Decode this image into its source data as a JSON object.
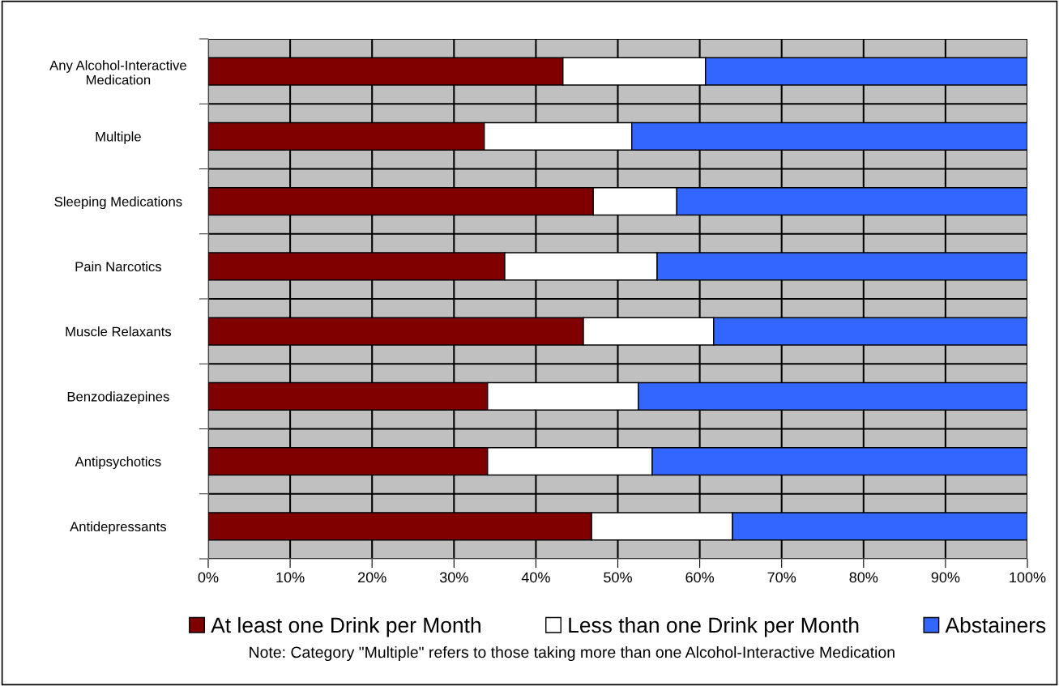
{
  "chart_data": {
    "type": "bar",
    "orientation": "horizontal",
    "stacked": true,
    "categories": [
      "Any Alcohol-Interactive\nMedication",
      "Multiple",
      "Sleeping Medications",
      "Pain Narcotics",
      "Muscle Relaxants",
      "Benzodiazepines",
      "Antipsychotics",
      "Antidepressants"
    ],
    "series": [
      {
        "name": "At least one Drink per Month",
        "color": "#800000",
        "values": [
          43.3,
          33.7,
          47.0,
          36.2,
          45.8,
          34.1,
          34.1,
          46.8
        ]
      },
      {
        "name": "Less than one Drink per Month",
        "color": "#ffffff",
        "values": [
          17.4,
          18.0,
          10.2,
          18.6,
          15.9,
          18.4,
          20.1,
          17.2
        ]
      },
      {
        "name": "Abstainers",
        "color": "#3366ff",
        "values": [
          39.3,
          48.3,
          42.8,
          45.2,
          38.3,
          47.5,
          45.8,
          36.0
        ]
      }
    ],
    "xlim": [
      0,
      100
    ],
    "xticks": [
      {
        "value": 0,
        "label": "0%"
      },
      {
        "value": 10,
        "label": "10%"
      },
      {
        "value": 20,
        "label": "20%"
      },
      {
        "value": 30,
        "label": "30%"
      },
      {
        "value": 40,
        "label": "40%"
      },
      {
        "value": 50,
        "label": "50%"
      },
      {
        "value": 60,
        "label": "60%"
      },
      {
        "value": 70,
        "label": "70%"
      },
      {
        "value": 80,
        "label": "80%"
      },
      {
        "value": 90,
        "label": "90%"
      },
      {
        "value": 100,
        "label": "100%"
      }
    ],
    "grid": true,
    "legend": "bottom",
    "annotations": [
      "Note: Category \"Multiple\" refers to those taking more than one Alcohol-Interactive Medication"
    ]
  }
}
